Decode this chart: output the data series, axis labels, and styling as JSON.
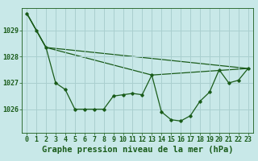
{
  "title": "Graphe pression niveau de la mer (hPa)",
  "bg_color": "#c8e8e8",
  "grid_color": "#aacfcf",
  "line_color": "#1a5c1a",
  "marker_color": "#1a5c1a",
  "xlim": [
    -0.5,
    23.5
  ],
  "ylim": [
    1025.1,
    1029.85
  ],
  "yticks": [
    1026,
    1027,
    1028,
    1029
  ],
  "xticks": [
    0,
    1,
    2,
    3,
    4,
    5,
    6,
    7,
    8,
    9,
    10,
    11,
    12,
    13,
    14,
    15,
    16,
    17,
    18,
    19,
    20,
    21,
    22,
    23
  ],
  "series1_x": [
    0,
    1,
    2,
    3,
    4,
    5,
    6,
    7,
    8,
    9,
    10,
    11,
    12,
    13,
    14,
    15,
    16,
    17,
    18,
    19,
    20,
    21,
    22,
    23
  ],
  "series1_y": [
    1029.65,
    1029.0,
    1028.35,
    1027.0,
    1026.75,
    1026.0,
    1026.0,
    1026.0,
    1026.0,
    1026.5,
    1026.55,
    1026.6,
    1026.55,
    1027.3,
    1025.9,
    1025.6,
    1025.55,
    1025.75,
    1026.3,
    1026.65,
    1027.5,
    1027.0,
    1027.1,
    1027.55
  ],
  "series2_x": [
    0,
    2,
    23
  ],
  "series2_y": [
    1029.65,
    1028.35,
    1027.55
  ],
  "series3_x": [
    0,
    2,
    13,
    23
  ],
  "series3_y": [
    1029.65,
    1028.35,
    1027.3,
    1027.55
  ],
  "title_fontsize": 7.5,
  "tick_fontsize": 6,
  "title_color": "#1a5c1a",
  "spine_color": "#1a5c1a"
}
